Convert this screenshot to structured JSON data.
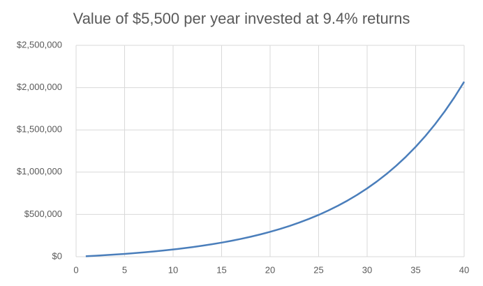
{
  "chart_data": {
    "type": "line",
    "title": "Value of $5,500 per year invested at 9.4% returns",
    "x": [
      1,
      2,
      3,
      4,
      5,
      6,
      7,
      8,
      9,
      10,
      11,
      12,
      13,
      14,
      15,
      16,
      17,
      18,
      19,
      20,
      21,
      22,
      23,
      24,
      25,
      26,
      27,
      28,
      29,
      30,
      31,
      32,
      33,
      34,
      35,
      36,
      37,
      38,
      39,
      40
    ],
    "series": [
      {
        "name": "Value",
        "color": "#4a7ebb",
        "values": [
          5500,
          11517,
          18100,
          25301,
          33180,
          41798,
          51227,
          61542,
          72828,
          85173,
          98680,
          113455,
          129620,
          147304,
          166651,
          187816,
          210971,
          236302,
          264015,
          294331,
          327498,
          363783,
          403478,
          446905,
          494415,
          546389,
          603250,
          665455,
          733508,
          807958,
          889407,
          978511,
          1075992,
          1182637,
          1299305,
          1426939,
          1566570,
          1719329,
          1886445,
          2069268
        ]
      }
    ],
    "xlim": [
      0,
      40
    ],
    "xticks": [
      0,
      5,
      10,
      15,
      20,
      25,
      30,
      35,
      40
    ],
    "ylim": [
      0,
      2500000
    ],
    "yticks": [
      {
        "value": 0,
        "label": "$0"
      },
      {
        "value": 500000,
        "label": "$500,000"
      },
      {
        "value": 1000000,
        "label": "$1,000,000"
      },
      {
        "value": 1500000,
        "label": "$1,500,000"
      },
      {
        "value": 2000000,
        "label": "$2,000,000"
      },
      {
        "value": 2500000,
        "label": "$2,500,000"
      }
    ],
    "grid": true
  }
}
